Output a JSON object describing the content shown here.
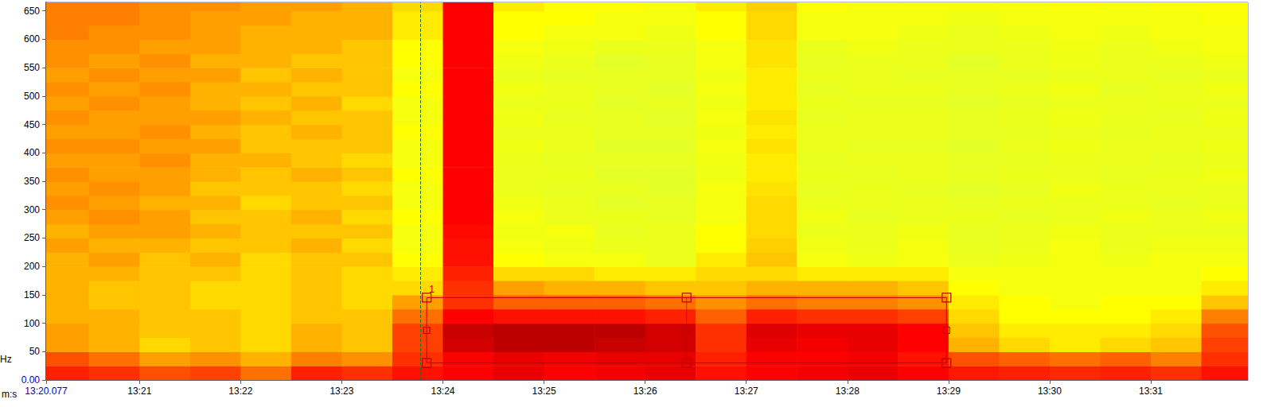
{
  "chart_data": {
    "type": "heatmap",
    "x_label": "m:s",
    "y_label": "Hz",
    "xlim": [
      800.077,
      811.96
    ],
    "ylim": [
      0,
      665
    ],
    "xticks": [
      {
        "value": 800.077,
        "label": "13:20.077"
      },
      {
        "value": 801,
        "label": "13:21"
      },
      {
        "value": 802,
        "label": "13:22"
      },
      {
        "value": 803,
        "label": "13:23"
      },
      {
        "value": 804,
        "label": "13:24"
      },
      {
        "value": 805,
        "label": "13:25"
      },
      {
        "value": 806,
        "label": "13:26"
      },
      {
        "value": 807,
        "label": "13:27"
      },
      {
        "value": 808,
        "label": "13:28"
      },
      {
        "value": 809,
        "label": "13:29"
      },
      {
        "value": 810,
        "label": "13:30"
      },
      {
        "value": 811,
        "label": "13:31"
      }
    ],
    "yticks": [
      {
        "value": 0,
        "label": "0.00"
      },
      50,
      100,
      150,
      200,
      250,
      300,
      350,
      400,
      450,
      500,
      550,
      600,
      650
    ],
    "grid": false,
    "value_range": [
      0,
      100
    ],
    "x_edges": [
      800.0,
      800.5,
      801.0,
      801.5,
      802.0,
      802.5,
      803.0,
      803.5,
      804.0,
      804.5,
      805.0,
      805.5,
      806.0,
      806.5,
      807.0,
      807.5,
      808.0,
      808.5,
      809.0,
      809.5,
      810.0,
      810.5,
      811.0,
      811.5,
      812.0
    ],
    "y_edges": [
      0,
      25,
      50,
      75,
      100,
      125,
      150,
      175,
      200,
      225,
      250,
      275,
      300,
      325,
      350,
      375,
      400,
      425,
      450,
      475,
      500,
      525,
      550,
      575,
      600,
      625,
      650,
      675
    ],
    "cells": [
      [
        86,
        84,
        80,
        82,
        76,
        86,
        84,
        88,
        90,
        92,
        90,
        91,
        92,
        88,
        90,
        91,
        92,
        90,
        87,
        86,
        85,
        86,
        84,
        88
      ],
      [
        80,
        76,
        70,
        72,
        68,
        74,
        72,
        84,
        90,
        92,
        91,
        92,
        92,
        86,
        90,
        90,
        91,
        88,
        80,
        78,
        76,
        78,
        74,
        84
      ],
      [
        70,
        68,
        64,
        66,
        64,
        68,
        66,
        82,
        94,
        96,
        96,
        95,
        94,
        84,
        92,
        91,
        92,
        90,
        68,
        64,
        62,
        64,
        66,
        82
      ],
      [
        70,
        68,
        66,
        66,
        64,
        68,
        66,
        82,
        95,
        96,
        96,
        96,
        94,
        84,
        93,
        92,
        92,
        90,
        66,
        62,
        62,
        62,
        64,
        80
      ],
      [
        68,
        68,
        66,
        66,
        64,
        66,
        66,
        76,
        90,
        88,
        88,
        88,
        86,
        78,
        86,
        84,
        84,
        82,
        64,
        60,
        60,
        60,
        62,
        74
      ],
      [
        68,
        66,
        66,
        64,
        64,
        66,
        64,
        70,
        84,
        78,
        78,
        78,
        76,
        72,
        76,
        74,
        74,
        72,
        62,
        60,
        58,
        60,
        60,
        66
      ],
      [
        68,
        66,
        66,
        64,
        64,
        66,
        64,
        64,
        84,
        70,
        68,
        68,
        66,
        66,
        68,
        68,
        68,
        66,
        60,
        58,
        58,
        58,
        58,
        62
      ],
      [
        68,
        68,
        66,
        66,
        64,
        66,
        64,
        62,
        86,
        64,
        64,
        62,
        62,
        64,
        64,
        62,
        62,
        62,
        58,
        58,
        58,
        58,
        58,
        60
      ],
      [
        68,
        70,
        66,
        68,
        64,
        66,
        66,
        60,
        88,
        60,
        58,
        58,
        56,
        62,
        66,
        58,
        57,
        58,
        56,
        57,
        58,
        57,
        58,
        58
      ],
      [
        70,
        68,
        68,
        66,
        66,
        68,
        64,
        58,
        88,
        58,
        57,
        56,
        56,
        60,
        65,
        57,
        56,
        58,
        55,
        56,
        58,
        56,
        57,
        57
      ],
      [
        68,
        70,
        70,
        68,
        66,
        66,
        66,
        58,
        89,
        57,
        58,
        55,
        56,
        60,
        64,
        56,
        56,
        57,
        55,
        56,
        57,
        56,
        56,
        56
      ],
      [
        70,
        72,
        70,
        66,
        66,
        68,
        64,
        60,
        90,
        58,
        56,
        56,
        55,
        58,
        64,
        57,
        55,
        56,
        56,
        55,
        56,
        57,
        56,
        57
      ],
      [
        72,
        70,
        68,
        68,
        64,
        66,
        66,
        58,
        90,
        57,
        56,
        54,
        55,
        58,
        64,
        56,
        56,
        56,
        55,
        56,
        56,
        56,
        55,
        56
      ],
      [
        70,
        72,
        70,
        66,
        66,
        66,
        64,
        58,
        90,
        56,
        55,
        55,
        54,
        58,
        63,
        55,
        56,
        55,
        54,
        55,
        57,
        56,
        56,
        56
      ],
      [
        72,
        70,
        70,
        68,
        66,
        68,
        66,
        60,
        90,
        56,
        56,
        54,
        54,
        57,
        62,
        56,
        55,
        56,
        55,
        56,
        56,
        55,
        56,
        57
      ],
      [
        70,
        70,
        72,
        68,
        68,
        66,
        64,
        58,
        90,
        56,
        55,
        55,
        55,
        57,
        62,
        55,
        56,
        56,
        55,
        55,
        56,
        56,
        55,
        56
      ],
      [
        72,
        72,
        70,
        70,
        66,
        66,
        66,
        58,
        90,
        57,
        56,
        54,
        54,
        58,
        63,
        56,
        55,
        55,
        54,
        56,
        57,
        56,
        56,
        57
      ],
      [
        70,
        70,
        72,
        68,
        66,
        68,
        66,
        60,
        90,
        56,
        56,
        55,
        55,
        57,
        62,
        56,
        56,
        56,
        55,
        55,
        56,
        55,
        56,
        56
      ],
      [
        72,
        70,
        70,
        70,
        68,
        66,
        66,
        58,
        90,
        57,
        55,
        55,
        54,
        58,
        63,
        55,
        56,
        56,
        55,
        56,
        57,
        56,
        55,
        57
      ],
      [
        70,
        72,
        70,
        68,
        66,
        68,
        64,
        58,
        90,
        56,
        56,
        54,
        55,
        57,
        62,
        56,
        55,
        55,
        54,
        55,
        56,
        56,
        56,
        56
      ],
      [
        72,
        70,
        72,
        68,
        68,
        66,
        66,
        60,
        90,
        57,
        56,
        55,
        54,
        58,
        62,
        55,
        56,
        56,
        55,
        56,
        57,
        55,
        56,
        57
      ],
      [
        70,
        72,
        70,
        70,
        66,
        68,
        66,
        58,
        90,
        56,
        55,
        55,
        55,
        57,
        62,
        56,
        56,
        55,
        55,
        55,
        56,
        56,
        55,
        56
      ],
      [
        72,
        70,
        72,
        68,
        68,
        66,
        66,
        60,
        90,
        57,
        56,
        54,
        55,
        58,
        63,
        55,
        56,
        56,
        54,
        56,
        57,
        56,
        56,
        57
      ],
      [
        72,
        72,
        70,
        70,
        68,
        68,
        66,
        60,
        90,
        58,
        57,
        56,
        56,
        58,
        63,
        56,
        57,
        56,
        56,
        56,
        57,
        56,
        57,
        58
      ],
      [
        74,
        72,
        72,
        70,
        68,
        68,
        68,
        62,
        90,
        60,
        58,
        58,
        57,
        60,
        64,
        58,
        58,
        57,
        56,
        57,
        58,
        57,
        58,
        58
      ],
      [
        74,
        74,
        72,
        70,
        70,
        68,
        68,
        62,
        90,
        60,
        60,
        58,
        58,
        60,
        64,
        58,
        58,
        58,
        57,
        58,
        58,
        58,
        58,
        59
      ],
      [
        74,
        74,
        72,
        72,
        70,
        70,
        68,
        64,
        90,
        62,
        60,
        60,
        58,
        62,
        65,
        60,
        58,
        58,
        58,
        58,
        59,
        58,
        59,
        60
      ]
    ],
    "selection": {
      "label": "1",
      "x": [
        803.84,
        806.41,
        808.98
      ],
      "y": [
        30,
        145
      ]
    },
    "cursor_x": 803.78
  }
}
